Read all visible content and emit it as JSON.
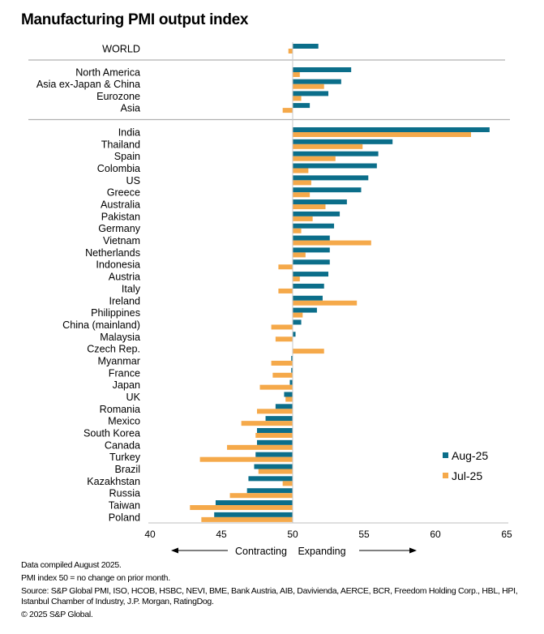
{
  "chart_data": {
    "type": "bar",
    "orientation": "horizontal",
    "title": "Manufacturing PMI output index",
    "xlabel": "",
    "ylabel": "",
    "xlim": [
      40,
      65
    ],
    "baseline": 50,
    "xticks": [
      40,
      45,
      50,
      55,
      60,
      65
    ],
    "grid": false,
    "legend_position": "bottom-right",
    "direction_labels": {
      "left": "Contracting",
      "right": "Expanding"
    },
    "series": [
      {
        "name": "Aug-25",
        "color": "#0b6e8a"
      },
      {
        "name": "Jul-25",
        "color": "#f5a94a"
      }
    ],
    "groups": [
      {
        "name": "global",
        "rows": [
          {
            "label": "WORLD",
            "aug": 51.8,
            "jul": 49.7
          }
        ]
      },
      {
        "name": "regions",
        "rows": [
          {
            "label": "North America",
            "aug": 54.1,
            "jul": 50.5
          },
          {
            "label": "Asia ex-Japan & China",
            "aug": 53.4,
            "jul": 52.2
          },
          {
            "label": "Eurozone",
            "aug": 52.5,
            "jul": 50.6
          },
          {
            "label": "Asia",
            "aug": 51.2,
            "jul": 49.3
          }
        ]
      },
      {
        "name": "countries",
        "rows": [
          {
            "label": "India",
            "aug": 63.8,
            "jul": 62.5
          },
          {
            "label": "Thailand",
            "aug": 57.0,
            "jul": 54.9
          },
          {
            "label": "Spain",
            "aug": 56.0,
            "jul": 53.0
          },
          {
            "label": "Colombia",
            "aug": 55.9,
            "jul": 51.1
          },
          {
            "label": "US",
            "aug": 55.3,
            "jul": 51.3
          },
          {
            "label": "Greece",
            "aug": 54.8,
            "jul": 51.2
          },
          {
            "label": "Australia",
            "aug": 53.8,
            "jul": 52.3
          },
          {
            "label": "Pakistan",
            "aug": 53.3,
            "jul": 51.4
          },
          {
            "label": "Germany",
            "aug": 52.9,
            "jul": 50.6
          },
          {
            "label": "Vietnam",
            "aug": 52.6,
            "jul": 55.5
          },
          {
            "label": "Netherlands",
            "aug": 52.6,
            "jul": 50.9
          },
          {
            "label": "Indonesia",
            "aug": 52.6,
            "jul": 49.0
          },
          {
            "label": "Austria",
            "aug": 52.5,
            "jul": 50.5
          },
          {
            "label": "Italy",
            "aug": 52.2,
            "jul": 49.0
          },
          {
            "label": "Ireland",
            "aug": 52.1,
            "jul": 54.5
          },
          {
            "label": "Philippines",
            "aug": 51.7,
            "jul": 50.7
          },
          {
            "label": "China (mainland)",
            "aug": 50.6,
            "jul": 48.5
          },
          {
            "label": "Malaysia",
            "aug": 50.2,
            "jul": 48.8
          },
          {
            "label": "Czech Rep.",
            "aug": 50.0,
            "jul": 52.2
          },
          {
            "label": "Myanmar",
            "aug": 49.9,
            "jul": 48.5
          },
          {
            "label": "France",
            "aug": 49.9,
            "jul": 48.6
          },
          {
            "label": "Japan",
            "aug": 49.8,
            "jul": 47.7
          },
          {
            "label": "UK",
            "aug": 49.4,
            "jul": 49.5
          },
          {
            "label": "Romania",
            "aug": 48.8,
            "jul": 47.5
          },
          {
            "label": "Mexico",
            "aug": 48.1,
            "jul": 46.4
          },
          {
            "label": "South Korea",
            "aug": 47.5,
            "jul": 47.4
          },
          {
            "label": "Canada",
            "aug": 47.5,
            "jul": 45.4
          },
          {
            "label": "Turkey",
            "aug": 47.4,
            "jul": 43.5
          },
          {
            "label": "Brazil",
            "aug": 47.3,
            "jul": 47.6
          },
          {
            "label": "Kazakhstan",
            "aug": 46.9,
            "jul": 49.3
          },
          {
            "label": "Russia",
            "aug": 46.8,
            "jul": 45.6
          },
          {
            "label": "Taiwan",
            "aug": 44.6,
            "jul": 42.8
          },
          {
            "label": "Poland",
            "aug": 44.5,
            "jul": 43.6
          }
        ]
      }
    ]
  },
  "footer": {
    "compiled": "Data compiled August 2025.",
    "note": "PMI index 50 = no change on prior month.",
    "source": "Source: S&P Global PMI, ISO, HCOB, HSBC, NEVI, BME, Bank Austria, AIB, Davivienda, AERCE, BCR, Freedom Holding Corp., HBL, HPI, Istanbul Chamber of Industry, J.P. Morgan, RatingDog.",
    "copyright": "© 2025 S&P Global."
  }
}
